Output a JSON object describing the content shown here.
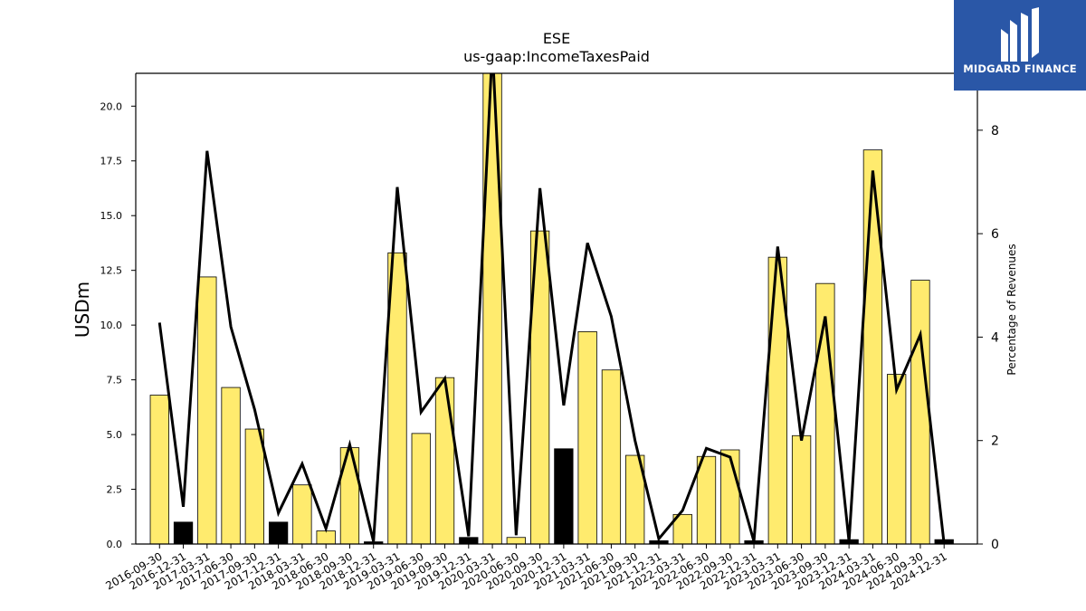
{
  "chart_data": {
    "type": "bar",
    "title": "ESE",
    "subtitle": "us-gaap:IncomeTaxesPaid",
    "ylabel": "USDm",
    "y2label": "Percentage of Revenues",
    "ylim": [
      0,
      21.5
    ],
    "y2lim": [
      0,
      9.1
    ],
    "yticks": [
      0.0,
      2.5,
      5.0,
      7.5,
      10.0,
      12.5,
      15.0,
      17.5,
      20.0
    ],
    "y2ticks": [
      0,
      2,
      4,
      6,
      8
    ],
    "grid": false,
    "categories": [
      "2016-09-30",
      "2016-12-31",
      "2017-03-31",
      "2017-06-30",
      "2017-09-30",
      "2017-12-31",
      "2018-03-31",
      "2018-06-30",
      "2018-09-30",
      "2018-12-31",
      "2019-03-31",
      "2019-06-30",
      "2019-09-30",
      "2019-12-31",
      "2020-03-31",
      "2020-06-30",
      "2020-09-30",
      "2020-12-31",
      "2021-03-31",
      "2021-06-30",
      "2021-09-30",
      "2021-12-31",
      "2022-03-31",
      "2022-06-30",
      "2022-09-30",
      "2022-12-31",
      "2023-03-31",
      "2023-06-30",
      "2023-09-30",
      "2023-12-31",
      "2024-03-31",
      "2024-06-30",
      "2024-09-30",
      "2024-12-31"
    ],
    "series": [
      {
        "type": "bar",
        "axis": "left",
        "values": [
          6.8,
          1.0,
          12.2,
          7.15,
          5.25,
          1.0,
          2.7,
          0.6,
          4.4,
          0.1,
          13.3,
          5.05,
          7.6,
          0.3,
          21.6,
          0.3,
          14.3,
          4.35,
          9.7,
          7.95,
          4.05,
          0.15,
          1.35,
          4.0,
          4.3,
          0.15,
          13.1,
          4.95,
          11.9,
          0.2,
          18.0,
          7.75,
          12.05,
          0.2
        ]
      },
      {
        "type": "line",
        "axis": "right",
        "values": [
          4.28,
          0.72,
          7.6,
          4.2,
          2.6,
          0.6,
          1.55,
          0.3,
          1.92,
          0.05,
          6.9,
          2.55,
          3.2,
          0.15,
          9.6,
          0.17,
          6.88,
          2.68,
          5.82,
          4.4,
          2.0,
          0.1,
          0.65,
          1.85,
          1.68,
          0.05,
          5.75,
          2.0,
          4.4,
          0.05,
          7.22,
          2.98,
          4.05,
          0.0
        ]
      }
    ],
    "bar_colors": {
      "fourth_quarter_flag": [
        false,
        true,
        false,
        false,
        false,
        true,
        false,
        false,
        false,
        true,
        false,
        false,
        false,
        true,
        false,
        false,
        false,
        true,
        false,
        false,
        false,
        true,
        false,
        false,
        false,
        true,
        false,
        false,
        false,
        true,
        false,
        false,
        false,
        true
      ]
    },
    "colors": {
      "bar_fill": "#ffeb6e",
      "bar_fill_alt": "#000000",
      "bar_edge": "#000000",
      "line": "#000000"
    }
  },
  "logo": {
    "text": "MIDGARD FINANCE",
    "background": "#2a57a7"
  }
}
